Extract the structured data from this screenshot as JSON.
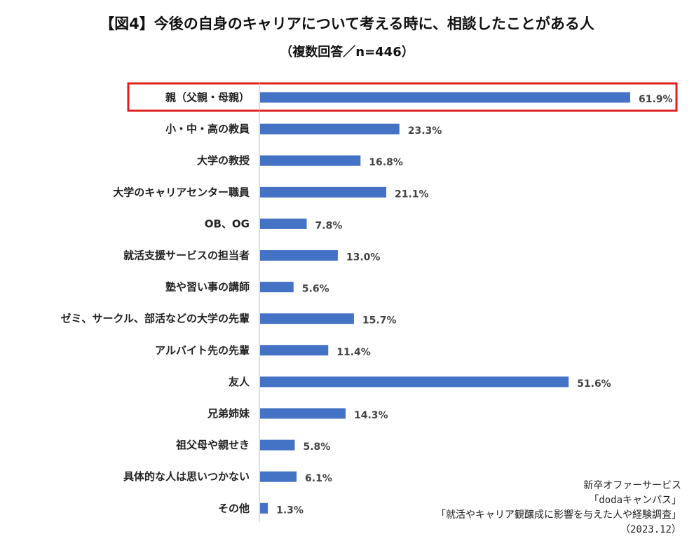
{
  "chart_data": {
    "type": "bar",
    "orientation": "horizontal",
    "title": "【図4】今後の自身のキャリアについて考える時に、相談したことがある人",
    "subtitle": "（複数回答／n=446）",
    "categories": [
      "親（父親・母親）",
      "小・中・高の教員",
      "大学の教授",
      "大学のキャリアセンター職員",
      "OB、OG",
      "就活支援サービスの担当者",
      "塾や習い事の講師",
      "ゼミ、サークル、部活などの大学の先輩",
      "アルバイト先の先輩",
      "友人",
      "兄弟姉妹",
      "祖父母や親せき",
      "具体的な人は思いつかない",
      "その他"
    ],
    "values": [
      61.9,
      23.3,
      16.8,
      21.1,
      7.8,
      13.0,
      5.6,
      15.7,
      11.4,
      51.6,
      14.3,
      5.8,
      6.1,
      1.3
    ],
    "value_labels": [
      "61.9%",
      "23.3%",
      "16.8%",
      "21.1%",
      "7.8%",
      "13.0%",
      "5.6%",
      "15.7%",
      "11.4%",
      "51.6%",
      "14.3%",
      "5.8%",
      "6.1%",
      "1.3%"
    ],
    "xlim": [
      0,
      62
    ],
    "grid": false,
    "highlight_index": 0,
    "colors": {
      "bar": "#4472C4",
      "highlight_border": "#E02020",
      "axis": "#BFBFBF"
    }
  },
  "source_lines": [
    "新卒オファーサービス",
    "「dodaキャンパス」",
    "「就活やキャリア観醸成に影響を与えた人や経験調査」",
    "（2023.12）"
  ]
}
